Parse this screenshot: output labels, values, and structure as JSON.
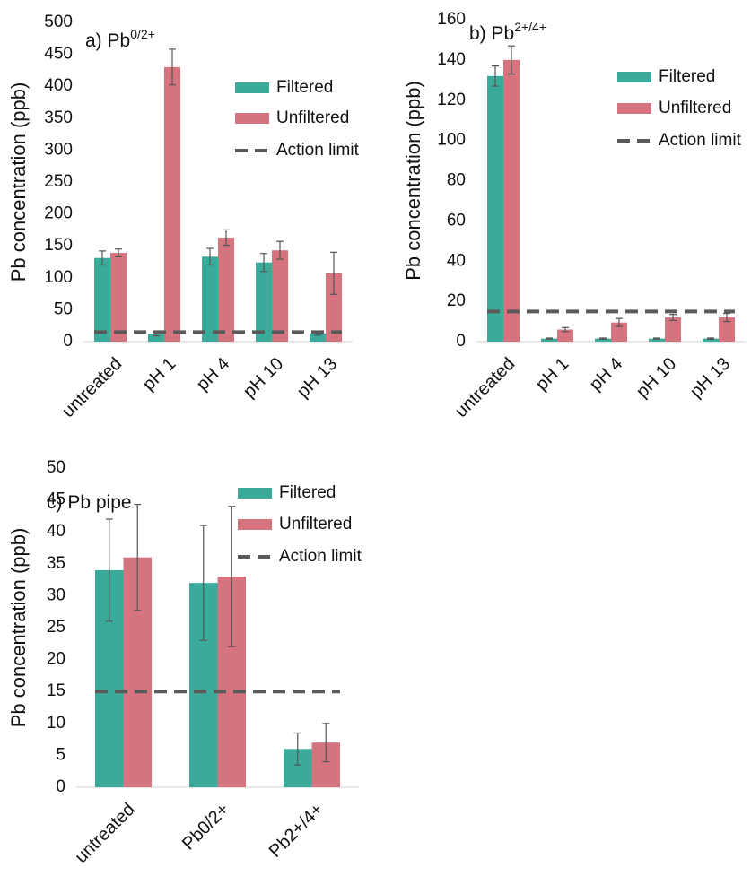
{
  "chart_data": [
    {
      "type": "bar",
      "title": "a) Pb",
      "title_superscript": "0/2+",
      "ylabel": "Pb concentration (ppb)",
      "categories": [
        "untreated",
        "pH 1",
        "pH 4",
        "pH 10",
        "pH 13"
      ],
      "series": [
        {
          "name": "Filtered",
          "color": "#3aab9a",
          "values": [
            131,
            12,
            133,
            124,
            13
          ],
          "errors": [
            11,
            3,
            13,
            14,
            3
          ]
        },
        {
          "name": "Unfiltered",
          "color": "#d5737e",
          "values": [
            139,
            430,
            163,
            143,
            107
          ],
          "errors": [
            6,
            28,
            12,
            14,
            33
          ]
        },
        {
          "name": "Action limit",
          "type": "line",
          "color": "#5a5a5a",
          "values": [
            15,
            15,
            15,
            15,
            15
          ]
        }
      ],
      "ylim": [
        0,
        500
      ],
      "yticks": [
        0,
        50,
        100,
        150,
        200,
        250,
        300,
        350,
        400,
        450,
        500
      ],
      "legend": "upper right"
    },
    {
      "type": "bar",
      "title": "b) Pb",
      "title_superscript": "2+/4+",
      "ylabel": "Pb concentration (ppb)",
      "categories": [
        "untreated",
        "pH 1",
        "pH 4",
        "pH 10",
        "pH 13"
      ],
      "series": [
        {
          "name": "Filtered",
          "color": "#3aab9a",
          "values": [
            132,
            1.5,
            1.5,
            1.5,
            1.5
          ],
          "errors": [
            5,
            0.3,
            0.3,
            0.3,
            0.3
          ]
        },
        {
          "name": "Unfiltered",
          "color": "#d5737e",
          "values": [
            140,
            6,
            9.5,
            12,
            12
          ],
          "errors": [
            7,
            1,
            2,
            1.5,
            2
          ]
        },
        {
          "name": "Action limit",
          "type": "line",
          "color": "#5a5a5a",
          "values": [
            15,
            15,
            15,
            15,
            15
          ]
        }
      ],
      "ylim": [
        0,
        160
      ],
      "yticks": [
        0,
        20,
        40,
        60,
        80,
        100,
        120,
        140,
        160
      ],
      "legend": "upper right"
    },
    {
      "type": "bar",
      "title": "c) Pb pipe",
      "ylabel": "Pb concentration (ppb)",
      "categories": [
        "untreated",
        "Pb0/2+",
        "Pb2+/4+"
      ],
      "series": [
        {
          "name": "Filtered",
          "color": "#3aab9a",
          "values": [
            34,
            32,
            6
          ],
          "errors": [
            8,
            9,
            2.5
          ]
        },
        {
          "name": "Unfiltered",
          "color": "#d5737e",
          "values": [
            36,
            33,
            7
          ],
          "errors": [
            8.3,
            11,
            3
          ]
        },
        {
          "name": "Action limit",
          "type": "line",
          "color": "#5a5a5a",
          "values": [
            15,
            15,
            15
          ]
        }
      ],
      "ylim": [
        0,
        50
      ],
      "yticks": [
        0,
        5,
        10,
        15,
        20,
        25,
        30,
        35,
        40,
        45,
        50
      ],
      "legend": "upper right"
    }
  ]
}
